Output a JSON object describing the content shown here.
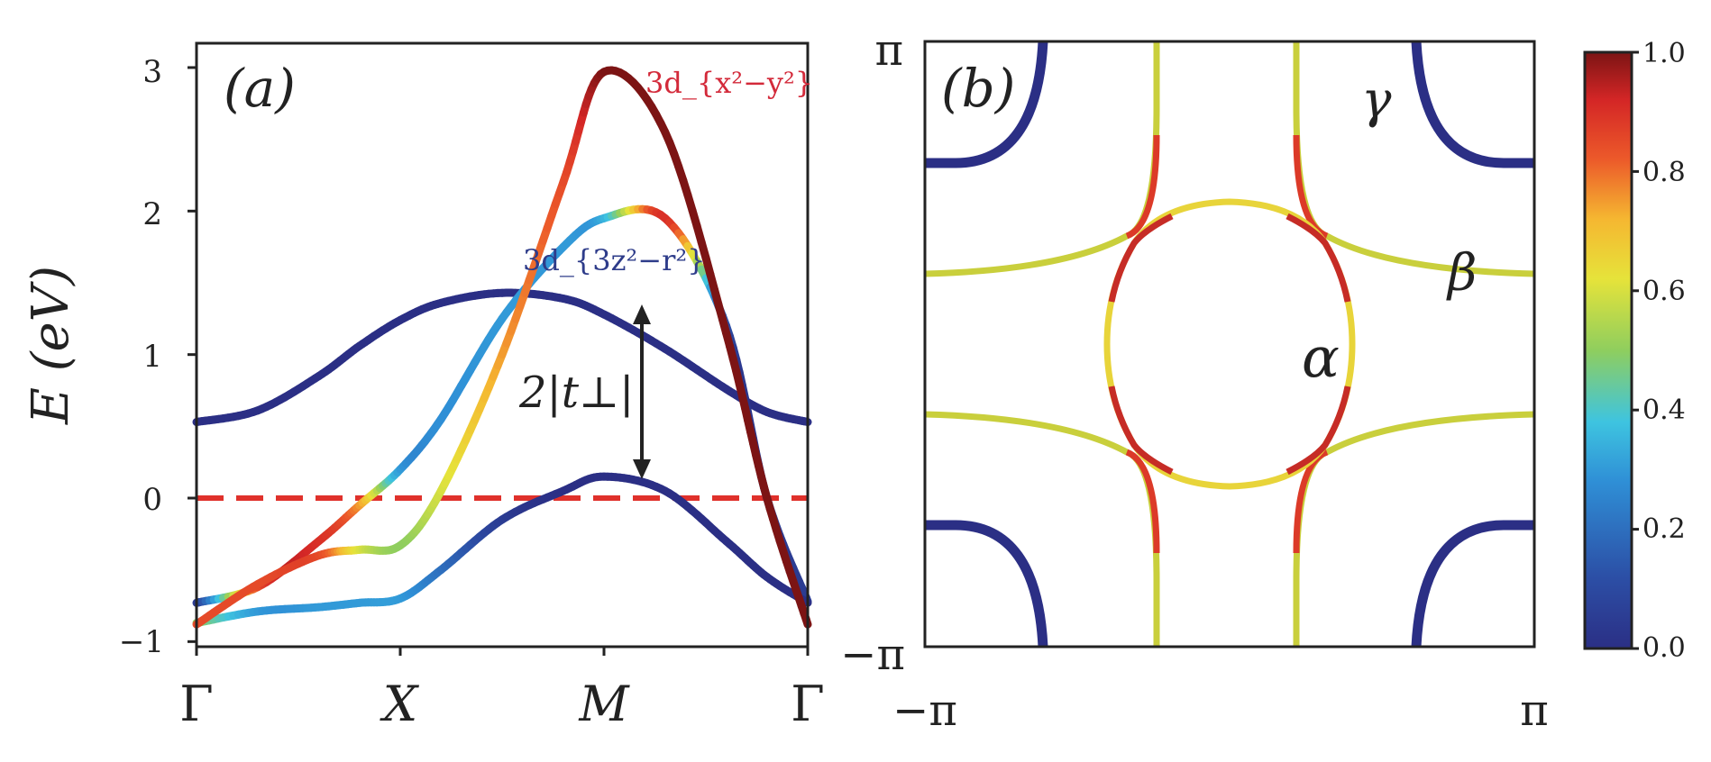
{
  "chart_data": [
    {
      "panel": "(a)",
      "type": "line",
      "ylabel": "E (eV)",
      "ylim": [
        -1.05,
        3.2
      ],
      "yticks": [
        "3",
        "2",
        "1",
        "0",
        "−1"
      ],
      "y_tick_values": [
        3,
        2,
        1,
        0,
        -1
      ],
      "xticks": [
        "Γ",
        "X",
        "M",
        "Γ"
      ],
      "fermi_level": 0,
      "colormap": "jet (d_{x²−y²} orbital weight)",
      "series": [
        {
          "x": [
            0,
            0.3,
            0.6,
            0.8,
            1,
            1.2,
            1.5,
            1.8,
            2,
            2.3,
            2.6,
            2.8,
            3
          ],
          "y": [
            0.53,
            0.61,
            0.85,
            1.06,
            1.24,
            1.36,
            1.43,
            1.39,
            1.28,
            1.04,
            0.76,
            0.6,
            0.53
          ],
          "weight": [
            0,
            0,
            0,
            0,
            0,
            0,
            0,
            0,
            0,
            0,
            0,
            0,
            0
          ]
        },
        {
          "x": [
            0,
            0.3,
            0.6,
            0.8,
            1,
            1.2,
            1.5,
            1.8,
            2,
            2.3,
            2.6,
            2.8,
            3
          ],
          "y": [
            -0.73,
            -0.62,
            -0.3,
            -0.05,
            0.2,
            0.55,
            1.25,
            1.75,
            1.95,
            1.95,
            1.2,
            0.0,
            -0.72
          ],
          "weight": [
            0.05,
            0.85,
            0.9,
            0.75,
            0.3,
            0.28,
            0.3,
            0.3,
            0.35,
            0.9,
            0.1,
            0.05,
            0.05
          ]
        },
        {
          "x": [
            0,
            0.3,
            0.6,
            0.8,
            1,
            1.2,
            1.5,
            1.8,
            2,
            2.3,
            2.6,
            2.8,
            3
          ],
          "y": [
            -0.87,
            -0.79,
            -0.76,
            -0.73,
            -0.7,
            -0.5,
            -0.15,
            0.05,
            0.15,
            0.05,
            -0.3,
            -0.55,
            -0.73
          ],
          "weight": [
            0.5,
            0.3,
            0.3,
            0.3,
            0.3,
            0.2,
            0.05,
            0.0,
            0.0,
            0.0,
            0.0,
            0.0,
            0.0
          ]
        },
        {
          "x": [
            0,
            0.3,
            0.6,
            0.8,
            1,
            1.2,
            1.5,
            1.8,
            2,
            2.3,
            2.6,
            2.8,
            3
          ],
          "y": [
            -0.88,
            -0.6,
            -0.4,
            -0.36,
            -0.33,
            0.05,
            1.0,
            2.2,
            2.97,
            2.55,
            1.15,
            0.0,
            -0.88
          ],
          "weight": [
            0.85,
            0.85,
            0.85,
            0.6,
            0.5,
            0.6,
            0.75,
            0.85,
            1.0,
            1.0,
            1.0,
            1.0,
            1.0
          ]
        }
      ],
      "annotations": {
        "panel_label": "(a)",
        "label_dx2y2": "3d_{x²−y²}",
        "label_dz2": "3d_{3z²−r²}",
        "gap_label": "2|t⊥|"
      },
      "colors": {
        "fermi_line": "#e0312b",
        "label_dx2y2": "#d32a3a",
        "label_dz2": "#2e3c8a"
      }
    },
    {
      "panel": "(b)",
      "type": "line",
      "xticks": [
        "−π",
        "π"
      ],
      "yticks": [
        "π",
        "−π"
      ],
      "xlim": [
        -3.1416,
        3.1416
      ],
      "ylim": [
        -3.1416,
        3.1416
      ],
      "fermi_surface_sheets": [
        "α",
        "β",
        "γ"
      ],
      "annotations": {
        "panel_label": "(b)",
        "alpha": "α",
        "beta": "β",
        "gamma": "γ"
      }
    },
    {
      "type": "colorbar",
      "range": [
        0.0,
        1.0
      ],
      "ticks": [
        "1.0",
        "0.8",
        "0.6",
        "0.4",
        "0.2",
        "0.0"
      ],
      "tick_values": [
        1.0,
        0.8,
        0.6,
        0.4,
        0.2,
        0.0
      ],
      "colormap": "jet"
    }
  ]
}
